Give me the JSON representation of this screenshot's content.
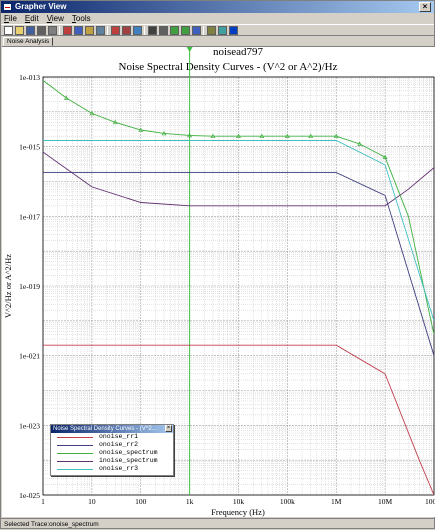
{
  "window": {
    "title": "Grapher View",
    "close_glyph": "×"
  },
  "menu": [
    {
      "name": "file",
      "label": "File",
      "accel": "F",
      "rest": "ile"
    },
    {
      "name": "edit",
      "label": "Edit",
      "accel": "E",
      "rest": "dit"
    },
    {
      "name": "view",
      "label": "View",
      "accel": "V",
      "rest": "iew"
    },
    {
      "name": "tools",
      "label": "Tools",
      "accel": "T",
      "rest": "ools"
    }
  ],
  "toolbar_icons": [
    "new-icon",
    "open-icon",
    "save-icon",
    "print-icon",
    "print-preview-icon",
    "cut-icon",
    "copy-icon",
    "paste-icon",
    "find-icon",
    "grid-icon",
    "grid-alt-icon",
    "legend-icon",
    "cursor-icon",
    "cursor-alt-icon",
    "zoom-in-icon",
    "zoom-out-icon",
    "zoom-fit-icon",
    "properties-icon",
    "export-icon",
    "help-icon"
  ],
  "tab": {
    "label": "Noise Analysis"
  },
  "status": {
    "text": "Selected Trace:onoise_spectrum"
  },
  "legend": {
    "title": "Noise Spectral Density Curves - (V^2...",
    "close_glyph": "×"
  },
  "colors": {
    "onoise_rr1": "#c04050",
    "onoise_rr2": "#404080",
    "onoise_spectrum": "#40b040",
    "inoise_spectrum": "#603070",
    "onoise_rr3": "#40c0c0",
    "cursor": "#40c040"
  },
  "chart_data": {
    "type": "line",
    "title": "noisead797",
    "subtitle": "Noise Spectral Density Curves - (V^2 or A^2)/Hz",
    "xlabel": "Frequency (Hz)",
    "ylabel": "V^2/Hz or A^2/Hz",
    "xscale": "log",
    "yscale": "log",
    "xlim": [
      1,
      100000000
    ],
    "ylim": [
      1e-25,
      1e-13
    ],
    "grid": true,
    "legend_position": "bottom-left",
    "x_ticks": [
      {
        "value": 1,
        "label": "1"
      },
      {
        "value": 10,
        "label": "10"
      },
      {
        "value": 100,
        "label": "100"
      },
      {
        "value": 1000,
        "label": "1k"
      },
      {
        "value": 10000,
        "label": "10k"
      },
      {
        "value": 100000,
        "label": "100k"
      },
      {
        "value": 1000000,
        "label": "1M"
      },
      {
        "value": 10000000,
        "label": "10M"
      },
      {
        "value": 100000000,
        "label": "100M"
      }
    ],
    "y_ticks": [
      {
        "value": 1e-13,
        "label": "1e-013"
      },
      {
        "value": 1e-15,
        "label": "1e-015"
      },
      {
        "value": 1e-17,
        "label": "1e-017"
      },
      {
        "value": 1e-19,
        "label": "1e-019"
      },
      {
        "value": 1e-21,
        "label": "1e-021"
      },
      {
        "value": 1e-23,
        "label": "1e-023"
      },
      {
        "value": 1e-25,
        "label": "1e-025"
      }
    ],
    "cursor_x": 1000,
    "series": [
      {
        "name": "onoise_rr1",
        "color": "#c04050",
        "x": [
          1,
          10,
          100,
          1000,
          10000,
          100000,
          1000000,
          10000000,
          50000000,
          100000000
        ],
        "y": [
          2e-21,
          2e-21,
          2e-21,
          2e-21,
          2e-21,
          2e-21,
          2e-21,
          3e-22,
          1e-24,
          1e-25
        ]
      },
      {
        "name": "onoise_rr2",
        "color": "#404080",
        "x": [
          1,
          10,
          100,
          1000,
          10000,
          100000,
          1000000,
          10000000,
          100000000
        ],
        "y": [
          1.8e-16,
          1.8e-16,
          1.8e-16,
          1.8e-16,
          1.8e-16,
          1.8e-16,
          1.8e-16,
          4e-17,
          1e-21
        ]
      },
      {
        "name": "onoise_spectrum",
        "color": "#40b040",
        "markers": true,
        "x": [
          1,
          3,
          10,
          30,
          100,
          300,
          1000,
          3000,
          10000,
          30000,
          100000,
          300000,
          1000000,
          3000000,
          10000000,
          30000000,
          100000000
        ],
        "y": [
          8e-14,
          2.5e-14,
          9e-15,
          5e-15,
          3e-15,
          2.4e-15,
          2.1e-15,
          2e-15,
          2e-15,
          2e-15,
          2e-15,
          2e-15,
          2e-15,
          1.2e-15,
          5e-16,
          1e-17,
          4e-21
        ]
      },
      {
        "name": "inoise_spectrum",
        "color": "#603070",
        "x": [
          1,
          10,
          100,
          1000,
          10000,
          100000,
          1000000,
          10000000,
          30000000,
          100000000
        ],
        "y": [
          7e-16,
          7e-17,
          2.5e-17,
          2e-17,
          2e-17,
          2e-17,
          2e-17,
          2e-17,
          6e-17,
          2.5e-16
        ]
      },
      {
        "name": "onoise_rr3",
        "color": "#40c0c0",
        "x": [
          1,
          10,
          100,
          1000,
          10000,
          100000,
          1000000,
          10000000,
          100000000
        ],
        "y": [
          1.5e-15,
          1.5e-15,
          1.5e-15,
          1.5e-15,
          1.5e-15,
          1.5e-15,
          1.5e-15,
          3e-16,
          1e-20
        ]
      }
    ]
  }
}
